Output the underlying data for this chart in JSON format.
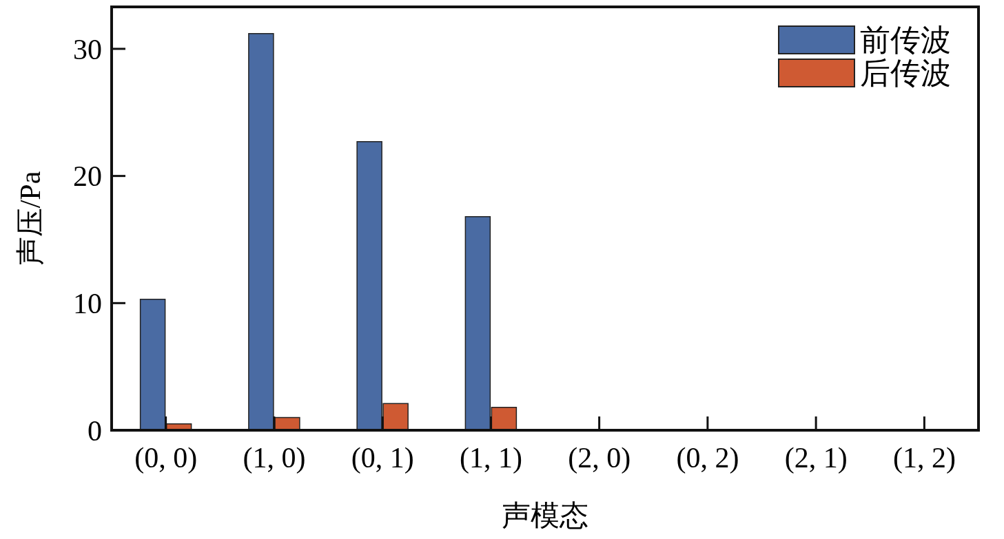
{
  "chart_data": {
    "type": "bar",
    "xlabel": "声模态",
    "ylabel": "声压/Pa",
    "categories": [
      "(0, 0)",
      "(1, 0)",
      "(0, 1)",
      "(1, 1)",
      "(2, 0)",
      "(0, 2)",
      "(2, 1)",
      "(1, 2)"
    ],
    "series": [
      {
        "name": "前传波",
        "color": "#4a6ba3",
        "values": [
          10.3,
          31.2,
          22.7,
          16.8,
          0,
          0,
          0,
          0
        ]
      },
      {
        "name": "后传波",
        "color": "#cf5a33",
        "values": [
          0.5,
          1.0,
          2.1,
          1.8,
          0,
          0,
          0,
          0
        ]
      }
    ],
    "ylim": [
      0,
      33.3
    ],
    "yticks": [
      0,
      10,
      20,
      30
    ],
    "grid": false,
    "legend": "top right"
  }
}
